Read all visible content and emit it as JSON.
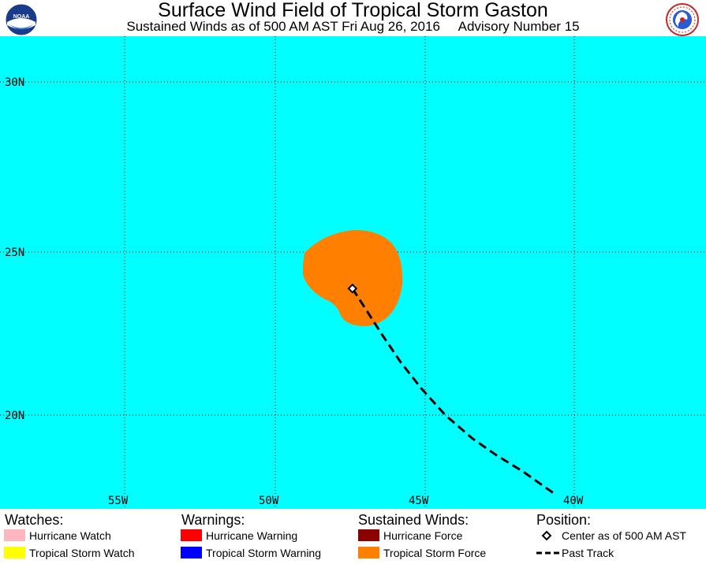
{
  "header": {
    "title": "Surface Wind Field of Tropical Storm Gaston",
    "subtitle": "Sustained Winds as of 500 AM AST Fri Aug 26, 2016     Advisory Number 15"
  },
  "logos": {
    "left": {
      "name": "NOAA",
      "label": "NOAA"
    },
    "right": {
      "name": "National Weather Service",
      "label": "NATIONAL WEATHER SERVICE"
    }
  },
  "map": {
    "ocean_color": "#00ffff",
    "grid_style": "dotted",
    "lat_labels": [
      "30N",
      "25N",
      "20N"
    ],
    "lon_labels": [
      "55W",
      "50W",
      "45W",
      "40W"
    ],
    "storm": {
      "center": {
        "lat": 23.8,
        "lon": -47.4
      },
      "tropical_storm_force_color": "#ff8000",
      "past_track": [
        {
          "lat": 23.8,
          "lon": -47.4
        },
        {
          "lat": 23.1,
          "lon": -46.9
        },
        {
          "lat": 22.4,
          "lon": -46.4
        },
        {
          "lat": 21.6,
          "lon": -45.8
        },
        {
          "lat": 20.8,
          "lon": -45.1
        },
        {
          "lat": 20.0,
          "lon": -44.3
        },
        {
          "lat": 19.3,
          "lon": -43.4
        },
        {
          "lat": 18.8,
          "lon": -42.6
        },
        {
          "lat": 18.3,
          "lon": -41.7
        },
        {
          "lat": 17.6,
          "lon": -40.6
        }
      ]
    }
  },
  "legend": {
    "watches": {
      "heading": "Watches:",
      "items": [
        {
          "label": "Hurricane Watch",
          "color": "#ffb6c1"
        },
        {
          "label": "Tropical Storm Watch",
          "color": "#ffff00"
        }
      ]
    },
    "warnings": {
      "heading": "Warnings:",
      "items": [
        {
          "label": "Hurricane Warning",
          "color": "#ff0000"
        },
        {
          "label": "Tropical Storm Warning",
          "color": "#0000ff"
        }
      ]
    },
    "winds": {
      "heading": "Sustained Winds:",
      "items": [
        {
          "label": "Hurricane Force",
          "color": "#8b0000"
        },
        {
          "label": "Tropical Storm Force",
          "color": "#ff8000"
        }
      ]
    },
    "position": {
      "heading": "Position:",
      "items": [
        {
          "label": "Center as of 500 AM AST",
          "icon": "diamond-icon"
        },
        {
          "label": "Past Track",
          "icon": "dashed-line-icon"
        }
      ]
    }
  }
}
